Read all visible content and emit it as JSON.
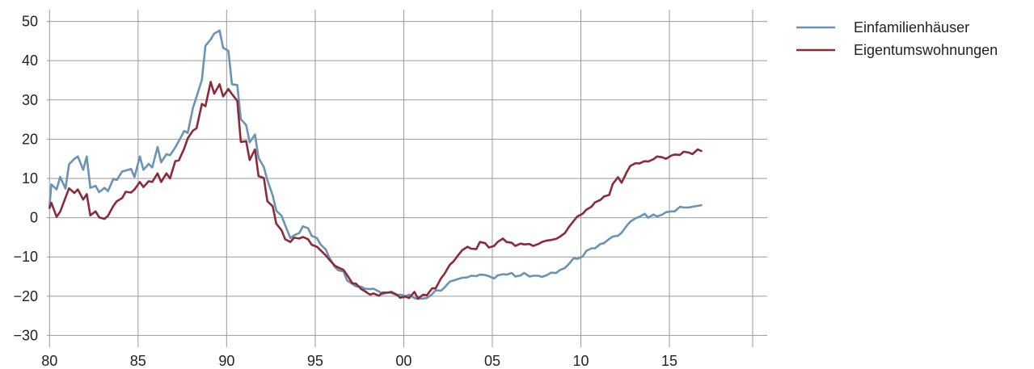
{
  "chart_data": {
    "type": "line",
    "title": "",
    "xlabel": "",
    "ylabel": "",
    "xlim": [
      1979.85,
      2019.7
    ],
    "ylim": [
      -33,
      53
    ],
    "x_ticks": [
      1980,
      1985,
      1990,
      1995,
      2000,
      2005,
      2010,
      2015
    ],
    "x_tick_labels": [
      "80",
      "85",
      "90",
      "95",
      "00",
      "05",
      "10",
      "15"
    ],
    "x_gridlines": [
      1980,
      1985,
      1990,
      1995,
      2000,
      2005,
      2010,
      2015,
      2019.7
    ],
    "y_ticks": [
      50,
      40,
      30,
      20,
      10,
      0,
      -10,
      -20,
      -30
    ],
    "y_tick_labels": [
      "50",
      "40",
      "30",
      "20",
      "10",
      "0",
      "−10",
      "−20",
      "−30"
    ],
    "grid": true,
    "legend_position": "top-right",
    "series": [
      {
        "name": "Einfamilienhäuser",
        "color": "#6a93b6",
        "points": [
          [
            1980.0,
            3
          ],
          [
            1980.1,
            8.5
          ],
          [
            1980.4,
            7.2
          ],
          [
            1980.6,
            10.4
          ],
          [
            1980.9,
            7.4
          ],
          [
            1981.1,
            13.6
          ],
          [
            1981.4,
            15
          ],
          [
            1981.6,
            15.6
          ],
          [
            1981.9,
            12.2
          ],
          [
            1982.1,
            15.6
          ],
          [
            1982.3,
            7.6
          ],
          [
            1982.6,
            8.1
          ],
          [
            1982.8,
            6.5
          ],
          [
            1983.1,
            7.6
          ],
          [
            1983.3,
            6.8
          ],
          [
            1983.6,
            9.9
          ],
          [
            1983.8,
            9.6
          ],
          [
            1984.1,
            11.8
          ],
          [
            1984.3,
            12
          ],
          [
            1984.6,
            12.4
          ],
          [
            1984.8,
            10.4
          ],
          [
            1985.1,
            15.6
          ],
          [
            1985.3,
            12.2
          ],
          [
            1985.6,
            13.7
          ],
          [
            1985.8,
            12.8
          ],
          [
            1986.1,
            18
          ],
          [
            1986.3,
            14.1
          ],
          [
            1986.6,
            16.2
          ],
          [
            1986.8,
            15.9
          ],
          [
            1987.1,
            17.9
          ],
          [
            1987.3,
            19.5
          ],
          [
            1987.6,
            22.1
          ],
          [
            1987.8,
            21.6
          ],
          [
            1988.1,
            28
          ],
          [
            1988.3,
            30.8
          ],
          [
            1988.6,
            35.1
          ],
          [
            1988.8,
            43.8
          ],
          [
            1989.1,
            45.4
          ],
          [
            1989.3,
            46.9
          ],
          [
            1989.6,
            47.7
          ],
          [
            1989.8,
            43.3
          ],
          [
            1990.1,
            42.5
          ],
          [
            1990.3,
            34
          ],
          [
            1990.6,
            33.8
          ],
          [
            1990.8,
            25.1
          ],
          [
            1991.1,
            23.6
          ],
          [
            1991.3,
            19.2
          ],
          [
            1991.6,
            21.2
          ],
          [
            1991.8,
            15.2
          ],
          [
            1992.1,
            12.9
          ],
          [
            1992.3,
            9.6
          ],
          [
            1992.6,
            5.7
          ],
          [
            1992.8,
            1.8
          ],
          [
            1993.1,
            0.5
          ],
          [
            1993.3,
            -1.9
          ],
          [
            1993.6,
            -5.2
          ],
          [
            1993.8,
            -4.5
          ],
          [
            1994.1,
            -3.9
          ],
          [
            1994.3,
            -2.2
          ],
          [
            1994.6,
            -2.7
          ],
          [
            1994.8,
            -4.6
          ],
          [
            1995.1,
            -5.2
          ],
          [
            1995.3,
            -6.8
          ],
          [
            1995.6,
            -8.1
          ],
          [
            1995.8,
            -10.2
          ],
          [
            1996.1,
            -12.5
          ],
          [
            1996.3,
            -13.4
          ],
          [
            1996.6,
            -13.7
          ],
          [
            1996.8,
            -16
          ],
          [
            1997.1,
            -16.9
          ],
          [
            1997.3,
            -17.5
          ],
          [
            1997.6,
            -17.6
          ],
          [
            1997.8,
            -18.1
          ],
          [
            1998.1,
            -18.2
          ],
          [
            1998.3,
            -18.1
          ],
          [
            1998.6,
            -18.8
          ],
          [
            1998.8,
            -19.5
          ],
          [
            1999.1,
            -19
          ],
          [
            1999.3,
            -19.2
          ],
          [
            1999.6,
            -19.7
          ],
          [
            1999.8,
            -19.6
          ],
          [
            2000.1,
            -20
          ],
          [
            2000.3,
            -19.6
          ],
          [
            2000.6,
            -20.5
          ],
          [
            2000.8,
            -20.7
          ],
          [
            2001.1,
            -20.6
          ],
          [
            2001.3,
            -20.5
          ],
          [
            2001.6,
            -19.5
          ],
          [
            2001.8,
            -18.5
          ],
          [
            2002.1,
            -18.6
          ],
          [
            2002.3,
            -17.8
          ],
          [
            2002.6,
            -16.3
          ],
          [
            2002.8,
            -16
          ],
          [
            2003.1,
            -15.6
          ],
          [
            2003.3,
            -15.3
          ],
          [
            2003.6,
            -15.2
          ],
          [
            2003.8,
            -14.8
          ],
          [
            2004.1,
            -14.9
          ],
          [
            2004.3,
            -14.5
          ],
          [
            2004.6,
            -14.6
          ],
          [
            2004.8,
            -14.9
          ],
          [
            2005.1,
            -15.5
          ],
          [
            2005.3,
            -14.7
          ],
          [
            2005.6,
            -14.4
          ],
          [
            2005.8,
            -14.5
          ],
          [
            2006.1,
            -14.1
          ],
          [
            2006.3,
            -15
          ],
          [
            2006.6,
            -14.7
          ],
          [
            2006.8,
            -14.1
          ],
          [
            2007.1,
            -15
          ],
          [
            2007.3,
            -14.8
          ],
          [
            2007.6,
            -14.8
          ],
          [
            2007.8,
            -15.1
          ],
          [
            2008.1,
            -14.6
          ],
          [
            2008.3,
            -14
          ],
          [
            2008.6,
            -14.1
          ],
          [
            2008.8,
            -13.4
          ],
          [
            2009.1,
            -12.8
          ],
          [
            2009.3,
            -11.9
          ],
          [
            2009.6,
            -10.3
          ],
          [
            2009.8,
            -10.5
          ],
          [
            2010.1,
            -9.9
          ],
          [
            2010.3,
            -8.5
          ],
          [
            2010.6,
            -7.8
          ],
          [
            2010.8,
            -7.8
          ],
          [
            2011.1,
            -6.7
          ],
          [
            2011.3,
            -6.5
          ],
          [
            2011.6,
            -5.4
          ],
          [
            2011.8,
            -4.8
          ],
          [
            2012.1,
            -4.6
          ],
          [
            2012.3,
            -3.8
          ],
          [
            2012.6,
            -2
          ],
          [
            2012.8,
            -1
          ],
          [
            2013.1,
            -0.1
          ],
          [
            2013.3,
            0.2
          ],
          [
            2013.6,
            1
          ],
          [
            2013.8,
            0
          ],
          [
            2014.1,
            0.8
          ],
          [
            2014.3,
            0.3
          ],
          [
            2014.6,
            0.8
          ],
          [
            2014.8,
            1.4
          ],
          [
            2015.1,
            1.6
          ],
          [
            2015.3,
            1.6
          ],
          [
            2015.6,
            2.8
          ],
          [
            2015.8,
            2.6
          ],
          [
            2016.1,
            2.6
          ],
          [
            2016.3,
            2.8
          ],
          [
            2016.6,
            3
          ],
          [
            2016.8,
            3.2
          ]
        ]
      },
      {
        "name": "Eigentumswohnungen",
        "color": "#8c2a3a",
        "points": [
          [
            1980.0,
            2.5
          ],
          [
            1980.1,
            3.8
          ],
          [
            1980.4,
            0.2
          ],
          [
            1980.6,
            1.5
          ],
          [
            1980.9,
            5.1
          ],
          [
            1981.1,
            7.5
          ],
          [
            1981.4,
            6.3
          ],
          [
            1981.6,
            7.2
          ],
          [
            1981.9,
            4.6
          ],
          [
            1982.1,
            6
          ],
          [
            1982.3,
            0.6
          ],
          [
            1982.6,
            1.6
          ],
          [
            1982.8,
            0.1
          ],
          [
            1983.1,
            -0.3
          ],
          [
            1983.3,
            0.5
          ],
          [
            1983.6,
            3
          ],
          [
            1983.8,
            4.2
          ],
          [
            1984.1,
            5
          ],
          [
            1984.3,
            6.6
          ],
          [
            1984.6,
            6.4
          ],
          [
            1984.8,
            7.2
          ],
          [
            1985.1,
            9.1
          ],
          [
            1985.3,
            7.8
          ],
          [
            1985.6,
            9.3
          ],
          [
            1985.8,
            9.1
          ],
          [
            1986.1,
            11.3
          ],
          [
            1986.3,
            9.1
          ],
          [
            1986.6,
            11.3
          ],
          [
            1986.8,
            10
          ],
          [
            1987.1,
            14.4
          ],
          [
            1987.3,
            14.6
          ],
          [
            1987.6,
            17.6
          ],
          [
            1987.8,
            20.2
          ],
          [
            1988.1,
            22.2
          ],
          [
            1988.3,
            22.8
          ],
          [
            1988.6,
            29
          ],
          [
            1988.8,
            28.4
          ],
          [
            1989.1,
            34.6
          ],
          [
            1989.3,
            31.6
          ],
          [
            1989.6,
            34
          ],
          [
            1989.8,
            30.9
          ],
          [
            1990.1,
            32.8
          ],
          [
            1990.3,
            31.5
          ],
          [
            1990.6,
            29.8
          ],
          [
            1990.8,
            19.3
          ],
          [
            1991.1,
            19.5
          ],
          [
            1991.3,
            14.7
          ],
          [
            1991.6,
            17.4
          ],
          [
            1991.8,
            10.6
          ],
          [
            1992.1,
            10.1
          ],
          [
            1992.3,
            4.2
          ],
          [
            1992.6,
            2.9
          ],
          [
            1992.8,
            -1.5
          ],
          [
            1993.1,
            -3.2
          ],
          [
            1993.3,
            -5.5
          ],
          [
            1993.6,
            -6.2
          ],
          [
            1993.8,
            -5.1
          ],
          [
            1994.1,
            -5.3
          ],
          [
            1994.3,
            -4.9
          ],
          [
            1994.6,
            -5.5
          ],
          [
            1994.8,
            -6.9
          ],
          [
            1995.1,
            -7.4
          ],
          [
            1995.3,
            -8.3
          ],
          [
            1995.6,
            -9.6
          ],
          [
            1995.8,
            -10.7
          ],
          [
            1996.1,
            -12.2
          ],
          [
            1996.3,
            -12.7
          ],
          [
            1996.6,
            -13.3
          ],
          [
            1996.8,
            -14.6
          ],
          [
            1997.1,
            -16.7
          ],
          [
            1997.3,
            -16.8
          ],
          [
            1997.6,
            -18.2
          ],
          [
            1997.8,
            -18.7
          ],
          [
            1998.1,
            -19.6
          ],
          [
            1998.3,
            -19.3
          ],
          [
            1998.6,
            -19.9
          ],
          [
            1998.8,
            -19.1
          ],
          [
            1999.1,
            -19.1
          ],
          [
            1999.3,
            -18.9
          ],
          [
            1999.6,
            -19.6
          ],
          [
            1999.8,
            -20.4
          ],
          [
            2000.1,
            -20.1
          ],
          [
            2000.3,
            -20.5
          ],
          [
            2000.6,
            -18.9
          ],
          [
            2000.8,
            -20.6
          ],
          [
            2001.1,
            -19.6
          ],
          [
            2001.3,
            -19.8
          ],
          [
            2001.6,
            -18
          ],
          [
            2001.8,
            -18
          ],
          [
            2002.1,
            -15.5
          ],
          [
            2002.3,
            -14.3
          ],
          [
            2002.6,
            -12
          ],
          [
            2002.8,
            -11.2
          ],
          [
            2003.1,
            -9.4
          ],
          [
            2003.3,
            -8.3
          ],
          [
            2003.6,
            -7.4
          ],
          [
            2003.8,
            -7.9
          ],
          [
            2004.1,
            -8
          ],
          [
            2004.3,
            -6.2
          ],
          [
            2004.6,
            -6.5
          ],
          [
            2004.8,
            -7.6
          ],
          [
            2005.1,
            -7.2
          ],
          [
            2005.3,
            -6.2
          ],
          [
            2005.6,
            -5.3
          ],
          [
            2005.8,
            -6.2
          ],
          [
            2006.1,
            -6.4
          ],
          [
            2006.3,
            -7.2
          ],
          [
            2006.6,
            -6.6
          ],
          [
            2006.8,
            -6.8
          ],
          [
            2007.1,
            -6.7
          ],
          [
            2007.3,
            -7.2
          ],
          [
            2007.6,
            -6.7
          ],
          [
            2007.8,
            -6.2
          ],
          [
            2008.1,
            -5.8
          ],
          [
            2008.3,
            -5.7
          ],
          [
            2008.6,
            -5.4
          ],
          [
            2008.8,
            -4.9
          ],
          [
            2009.1,
            -3.9
          ],
          [
            2009.3,
            -2.5
          ],
          [
            2009.6,
            -0.8
          ],
          [
            2009.8,
            0.3
          ],
          [
            2010.1,
            1
          ],
          [
            2010.3,
            2
          ],
          [
            2010.6,
            2.8
          ],
          [
            2010.8,
            3.9
          ],
          [
            2011.1,
            4.5
          ],
          [
            2011.3,
            5.4
          ],
          [
            2011.6,
            5.8
          ],
          [
            2011.8,
            8.6
          ],
          [
            2012.1,
            10.3
          ],
          [
            2012.3,
            8.9
          ],
          [
            2012.6,
            11.7
          ],
          [
            2012.8,
            13.2
          ],
          [
            2013.1,
            13.9
          ],
          [
            2013.3,
            13.8
          ],
          [
            2013.6,
            14.4
          ],
          [
            2013.8,
            14.3
          ],
          [
            2014.1,
            14.9
          ],
          [
            2014.3,
            15.6
          ],
          [
            2014.6,
            15.4
          ],
          [
            2014.8,
            15
          ],
          [
            2015.1,
            15.8
          ],
          [
            2015.3,
            16.1
          ],
          [
            2015.6,
            16
          ],
          [
            2015.8,
            16.8
          ],
          [
            2016.1,
            16.6
          ],
          [
            2016.3,
            16.2
          ],
          [
            2016.6,
            17.4
          ],
          [
            2016.8,
            17
          ]
        ]
      }
    ]
  }
}
